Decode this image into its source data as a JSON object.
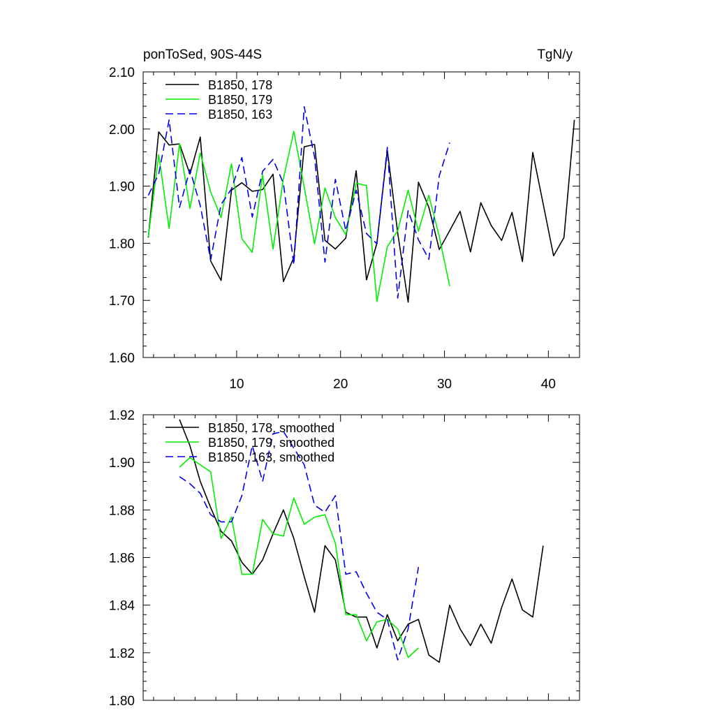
{
  "chart_data": [
    {
      "type": "line",
      "title": "ponToSed, 90S-44S",
      "units": "TgN/y",
      "xlim": [
        1,
        43
      ],
      "ylim": [
        1.6,
        2.1
      ],
      "xticks": [
        10,
        20,
        30,
        40
      ],
      "yticks": [
        1.6,
        1.7,
        1.8,
        1.9,
        2.0,
        2.1
      ],
      "legend_position": "top-left",
      "series": [
        {
          "name": "B1850, 178",
          "color": "#000000",
          "dash": "solid",
          "x": [
            1.5,
            2.5,
            3.5,
            4.5,
            5.5,
            6.5,
            7.5,
            8.5,
            9.5,
            10.5,
            11.5,
            12.5,
            13.5,
            14.5,
            15.5,
            16.5,
            17.5,
            18.5,
            19.5,
            20.5,
            21.5,
            22.5,
            23.5,
            24.5,
            25.5,
            26.5,
            27.5,
            28.5,
            29.5,
            30.5,
            31.5,
            32.5,
            33.5,
            34.5,
            35.5,
            36.5,
            37.5,
            38.5,
            39.5,
            40.5,
            41.5,
            42.5
          ],
          "values": [
            1.81,
            1.995,
            1.972,
            1.974,
            1.921,
            1.986,
            1.769,
            1.735,
            1.893,
            1.906,
            1.891,
            1.894,
            1.921,
            1.733,
            1.775,
            1.969,
            1.973,
            1.805,
            1.79,
            1.809,
            1.927,
            1.736,
            1.8,
            1.963,
            1.818,
            1.697,
            1.907,
            1.863,
            1.789,
            1.822,
            1.856,
            1.785,
            1.871,
            1.831,
            1.805,
            1.854,
            1.768,
            1.959,
            1.869,
            1.778,
            1.81,
            2.016
          ]
        },
        {
          "name": "B1850, 179",
          "color": "#00ee00",
          "dash": "solid",
          "x": [
            1.5,
            2.5,
            3.5,
            4.5,
            5.5,
            6.5,
            7.5,
            8.5,
            9.5,
            10.5,
            11.5,
            12.5,
            13.5,
            14.5,
            15.5,
            16.5,
            17.5,
            18.5,
            19.5,
            20.5,
            21.5,
            22.5,
            23.5,
            24.5,
            25.5,
            26.5,
            27.5,
            28.5,
            29.5,
            30.5
          ],
          "values": [
            1.811,
            1.955,
            1.826,
            1.974,
            1.861,
            1.958,
            1.89,
            1.845,
            1.939,
            1.808,
            1.784,
            1.92,
            1.79,
            1.913,
            1.996,
            1.898,
            1.799,
            1.897,
            1.845,
            1.815,
            1.905,
            1.901,
            1.698,
            1.794,
            1.822,
            1.893,
            1.821,
            1.884,
            1.812,
            1.725
          ]
        },
        {
          "name": "B1850, 163",
          "color": "#0000ee",
          "dash": "dashed",
          "x": [
            1.5,
            2.5,
            3.5,
            4.5,
            5.5,
            6.5,
            7.5,
            8.5,
            9.5,
            10.5,
            11.5,
            12.5,
            13.5,
            14.5,
            15.5,
            16.5,
            17.5,
            18.5,
            19.5,
            20.5,
            21.5,
            22.5,
            23.5,
            24.5,
            25.5,
            26.5,
            27.5,
            28.5,
            29.5,
            30.5
          ],
          "values": [
            1.884,
            1.921,
            2.016,
            1.863,
            1.929,
            1.866,
            1.771,
            1.868,
            1.895,
            1.95,
            1.846,
            1.926,
            1.947,
            1.905,
            1.762,
            2.039,
            1.951,
            1.767,
            1.912,
            1.822,
            1.893,
            1.817,
            1.799,
            1.968,
            1.704,
            1.857,
            1.806,
            1.772,
            1.918,
            1.976
          ]
        }
      ]
    },
    {
      "type": "line",
      "xlim": [
        1,
        43
      ],
      "ylim": [
        1.8,
        1.92
      ],
      "yticks": [
        1.8,
        1.82,
        1.84,
        1.86,
        1.88,
        1.9,
        1.92
      ],
      "legend_position": "top-left",
      "series": [
        {
          "name": "B1850, 178, smoothed",
          "color": "#000000",
          "dash": "solid",
          "x": [
            4.5,
            5.5,
            6.5,
            7.5,
            8.5,
            9.5,
            10.5,
            11.5,
            12.5,
            13.5,
            14.5,
            15.5,
            16.5,
            17.5,
            18.5,
            19.5,
            20.5,
            21.5,
            22.5,
            23.5,
            24.5,
            25.5,
            26.5,
            27.5,
            28.5,
            29.5,
            30.5,
            31.5,
            32.5,
            33.5,
            34.5,
            35.5,
            36.5,
            37.5,
            38.5,
            39.5
          ],
          "values": [
            1.918,
            1.907,
            1.892,
            1.881,
            1.871,
            1.867,
            1.858,
            1.853,
            1.859,
            1.87,
            1.88,
            1.868,
            1.852,
            1.837,
            1.865,
            1.859,
            1.837,
            1.835,
            1.835,
            1.822,
            1.836,
            1.825,
            1.832,
            1.834,
            1.819,
            1.816,
            1.84,
            1.83,
            1.823,
            1.832,
            1.824,
            1.839,
            1.851,
            1.838,
            1.835,
            1.865
          ]
        },
        {
          "name": "B1850, 179, smoothed",
          "color": "#00ee00",
          "dash": "solid",
          "x": [
            4.5,
            5.5,
            6.5,
            7.5,
            8.5,
            9.5,
            10.5,
            11.5,
            12.5,
            13.5,
            14.5,
            15.5,
            16.5,
            17.5,
            18.5,
            19.5,
            20.5,
            21.5,
            22.5,
            23.5,
            24.5,
            25.5,
            26.5,
            27.5
          ],
          "values": [
            1.898,
            1.902,
            1.899,
            1.896,
            1.868,
            1.877,
            1.853,
            1.853,
            1.876,
            1.87,
            1.869,
            1.885,
            1.874,
            1.877,
            1.878,
            1.866,
            1.836,
            1.836,
            1.825,
            1.833,
            1.834,
            1.83,
            1.818,
            1.822
          ]
        },
        {
          "name": "B1850, 163, smoothed",
          "color": "#0000ee",
          "dash": "dashed",
          "x": [
            4.5,
            5.5,
            6.5,
            7.5,
            8.5,
            9.5,
            10.5,
            11.5,
            12.5,
            13.5,
            14.5,
            15.5,
            16.5,
            17.5,
            18.5,
            19.5,
            20.5,
            21.5,
            22.5,
            23.5,
            24.5,
            25.5,
            26.5,
            27.5
          ],
          "values": [
            1.894,
            1.891,
            1.887,
            1.878,
            1.875,
            1.875,
            1.886,
            1.907,
            1.892,
            1.912,
            1.913,
            1.906,
            1.899,
            1.882,
            1.879,
            1.886,
            1.853,
            1.854,
            1.845,
            1.837,
            1.834,
            1.817,
            1.83,
            1.856
          ]
        }
      ]
    }
  ]
}
